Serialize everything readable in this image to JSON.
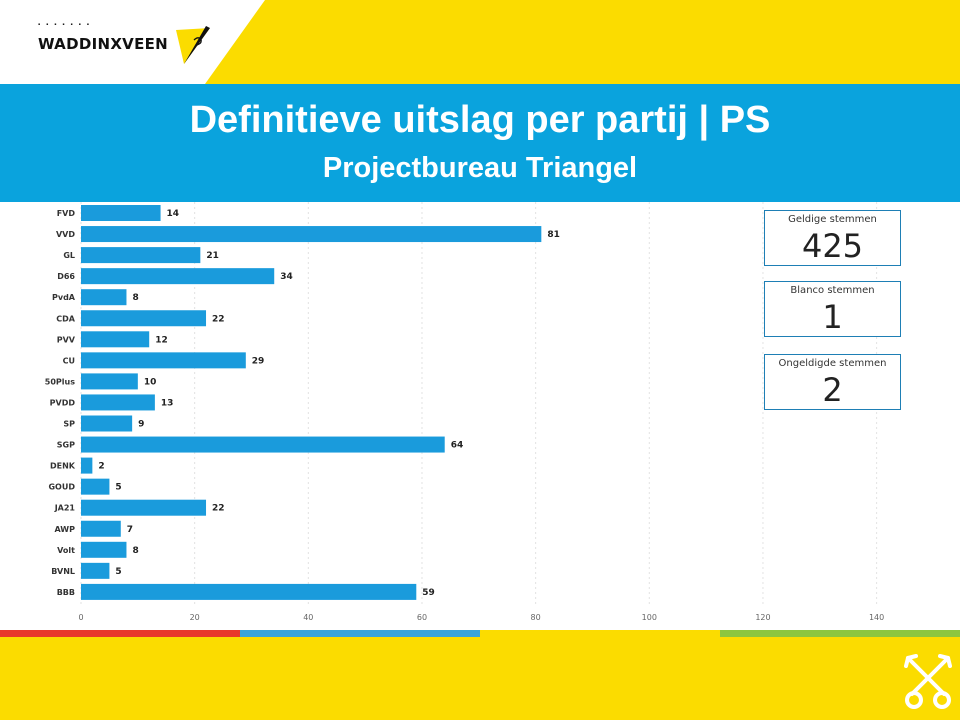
{
  "header": {
    "logo_text": "WADDINXVEEN",
    "title": "Definitieve uitslag per partij | PS",
    "subtitle": "Projectbureau Triangel"
  },
  "colors": {
    "brand_yellow": "#fbdc00",
    "brand_blue": "#0aa3dd",
    "bar": "#1a9bdc",
    "strip": [
      "#e8392b",
      "#3aa4dc",
      "#fbdc00",
      "#8cc63f"
    ]
  },
  "stats": {
    "valid": {
      "label": "Geldige stemmen",
      "value": "425"
    },
    "blank": {
      "label": "Blanco stemmen",
      "value": "1"
    },
    "invalid": {
      "label": "Ongeldigde stemmen",
      "value": "2"
    }
  },
  "icons": {
    "logo": "waddinxveen-flag-icon",
    "footer": "crossed-keys-icon"
  },
  "chart_data": {
    "type": "bar",
    "orientation": "horizontal",
    "categories": [
      "FVD",
      "VVD",
      "GL",
      "D66",
      "PvdA",
      "CDA",
      "PVV",
      "CU",
      "50Plus",
      "PVDD",
      "SP",
      "SGP",
      "DENK",
      "GOUD",
      "JA21",
      "AWP",
      "Volt",
      "BVNL",
      "BBB"
    ],
    "values": [
      14,
      81,
      21,
      34,
      8,
      22,
      12,
      29,
      10,
      13,
      9,
      64,
      2,
      5,
      22,
      7,
      8,
      5,
      59
    ],
    "xlim": [
      0,
      140
    ],
    "xticks": [
      0,
      20,
      40,
      60,
      80,
      100,
      120,
      140
    ],
    "grid": true,
    "data_labels": true
  }
}
